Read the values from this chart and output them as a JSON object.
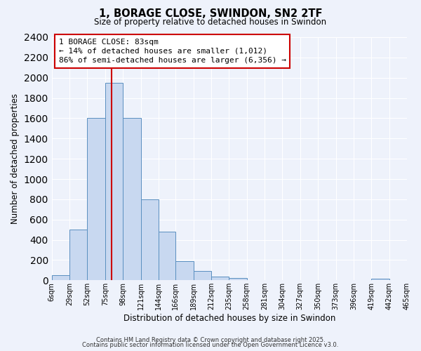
{
  "title": "1, BORAGE CLOSE, SWINDON, SN2 2TF",
  "subtitle": "Size of property relative to detached houses in Swindon",
  "xlabel": "Distribution of detached houses by size in Swindon",
  "ylabel": "Number of detached properties",
  "bar_edges": [
    6,
    29,
    52,
    75,
    98,
    121,
    144,
    166,
    189,
    212,
    235,
    258,
    281,
    304,
    327,
    350,
    373,
    396,
    419,
    442,
    465
  ],
  "bar_heights": [
    50,
    500,
    1600,
    1950,
    1600,
    800,
    480,
    190,
    90,
    35,
    20,
    5,
    0,
    0,
    0,
    0,
    0,
    0,
    15,
    0
  ],
  "bar_color": "#c8d8f0",
  "bar_edge_color": "#5a8fc0",
  "vline_x": 83,
  "vline_color": "#cc0000",
  "annotation_title": "1 BORAGE CLOSE: 83sqm",
  "annotation_line1": "← 14% of detached houses are smaller (1,012)",
  "annotation_line2": "86% of semi-detached houses are larger (6,356) →",
  "annotation_box_color": "#ffffff",
  "annotation_box_edge": "#cc0000",
  "ylim": [
    0,
    2400
  ],
  "yticks": [
    0,
    200,
    400,
    600,
    800,
    1000,
    1200,
    1400,
    1600,
    1800,
    2000,
    2200,
    2400
  ],
  "xtick_labels": [
    "6sqm",
    "29sqm",
    "52sqm",
    "75sqm",
    "98sqm",
    "121sqm",
    "144sqm",
    "166sqm",
    "189sqm",
    "212sqm",
    "235sqm",
    "258sqm",
    "281sqm",
    "304sqm",
    "327sqm",
    "350sqm",
    "373sqm",
    "396sqm",
    "419sqm",
    "442sqm",
    "465sqm"
  ],
  "background_color": "#eef2fb",
  "grid_color": "#ffffff",
  "footer1": "Contains HM Land Registry data © Crown copyright and database right 2025.",
  "footer2": "Contains public sector information licensed under the Open Government Licence v3.0."
}
